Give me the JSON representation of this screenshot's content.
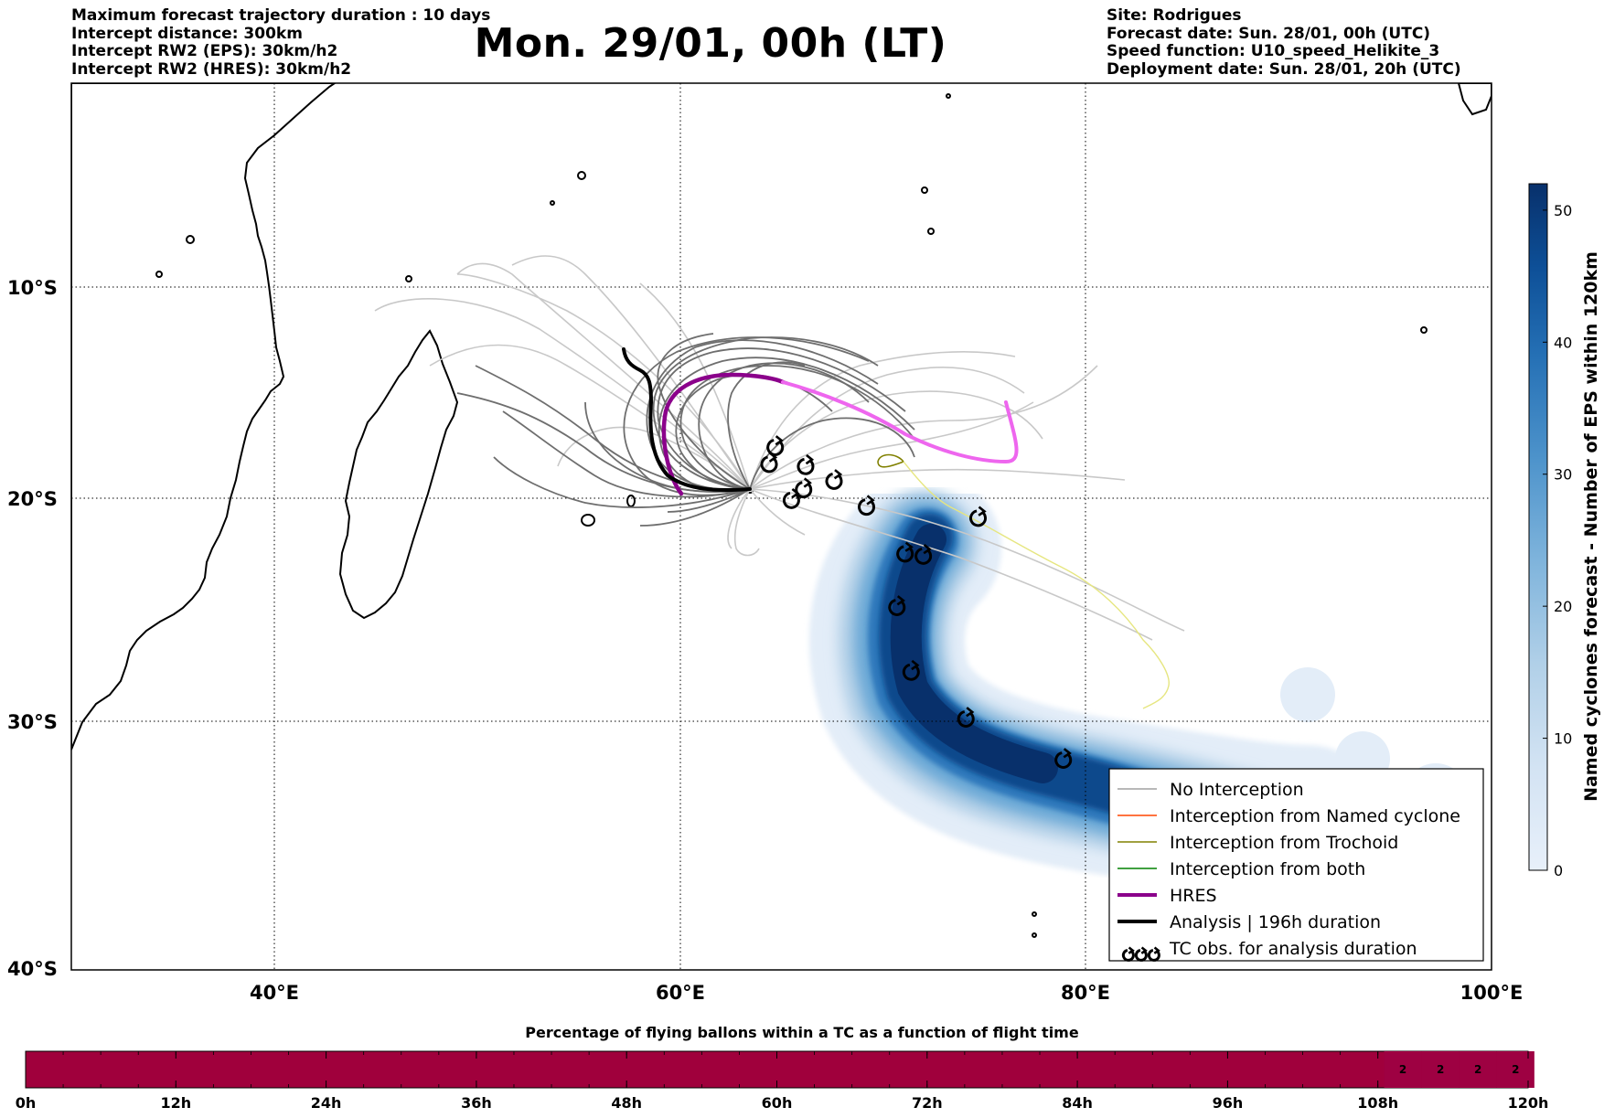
{
  "header": {
    "left": [
      "Maximum forecast trajectory duration : 10 days",
      "Intercept distance: 300km",
      "Intercept RW2 (EPS):  30km/h2",
      "Intercept RW2 (HRES): 30km/h2"
    ],
    "right": [
      "Site: Rodrigues",
      "Forecast date: Sun. 28/01, 00h (UTC)",
      "Speed function: U10_speed_Helikite_3",
      "Deployment date: Sun. 28/01, 20h (UTC)"
    ],
    "title": "Mon. 29/01, 00h (LT)"
  },
  "map": {
    "lon_range": [
      30,
      100
    ],
    "lat_range": [
      -40,
      0.5
    ],
    "lon_ticks": [
      {
        "value": 40,
        "label": "40°E"
      },
      {
        "value": 60,
        "label": "60°E"
      },
      {
        "value": 80,
        "label": "80°E"
      },
      {
        "value": 100,
        "label": "100°E"
      }
    ],
    "lat_ticks": [
      {
        "value": -10,
        "label": "10°S"
      },
      {
        "value": -20,
        "label": "20°S"
      },
      {
        "value": -30,
        "label": "30°S"
      },
      {
        "value": -40,
        "label": "40°S"
      }
    ],
    "grid": "dotted",
    "tc_observations": [
      [
        64.4,
        -18.4
      ],
      [
        64.7,
        -17.6
      ],
      [
        66.2,
        -18.5
      ],
      [
        65.5,
        -20.1
      ],
      [
        66.1,
        -19.6
      ],
      [
        67.6,
        -19.2
      ],
      [
        69.2,
        -20.4
      ],
      [
        74.7,
        -20.9
      ],
      [
        71.1,
        -22.5
      ],
      [
        72.0,
        -22.6
      ],
      [
        70.7,
        -24.9
      ],
      [
        71.4,
        -27.8
      ],
      [
        74.1,
        -29.9
      ],
      [
        78.9,
        -31.6
      ]
    ]
  },
  "legend": {
    "items": [
      {
        "label": "No Interception",
        "color": "#a0a0a0",
        "style": "line-thin"
      },
      {
        "label": "Interception from Named cyclone",
        "color": "#ff4500",
        "style": "line-thin"
      },
      {
        "label": "Interception from Trochoid",
        "color": "#808000",
        "style": "line-thin"
      },
      {
        "label": "Interception from both",
        "color": "#008000",
        "style": "line-thin"
      },
      {
        "label": "HRES",
        "color": "#8b008b",
        "style": "line-thick"
      },
      {
        "label": "Analysis | 196h duration",
        "color": "#000000",
        "style": "line-thick"
      },
      {
        "label": "TC obs. for analysis duration",
        "color": "#000000",
        "style": "tc-symbol"
      }
    ]
  },
  "colorbar": {
    "label": "Named cyclones forecast - Number of EPS within 120km",
    "ticks": [
      0,
      10,
      20,
      30,
      40,
      50
    ],
    "range": [
      0,
      52
    ],
    "colormap": [
      "#e8f0fa",
      "#c6dbef",
      "#9ecae1",
      "#6baed6",
      "#4292c6",
      "#2171b5",
      "#08519c",
      "#08306b"
    ]
  },
  "time_bar": {
    "title": "Percentage of flying ballons within a TC as a function of flight time",
    "ticks": [
      "0h",
      "12h",
      "24h",
      "36h",
      "48h",
      "60h",
      "72h",
      "84h",
      "96h",
      "108h",
      "120h"
    ],
    "fill_color": "#a0003c",
    "cell_values": [
      {
        "hour": 110,
        "label": "2"
      },
      {
        "hour": 113,
        "label": "2"
      },
      {
        "hour": 116,
        "label": "2"
      },
      {
        "hour": 119,
        "label": "2"
      }
    ]
  }
}
